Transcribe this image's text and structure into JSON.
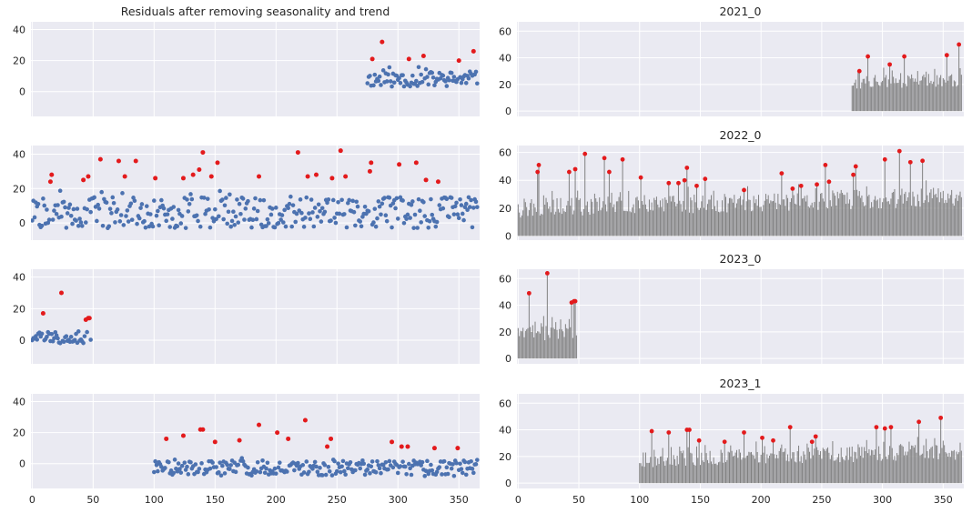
{
  "colors": {
    "background": "#eaeaf2",
    "grid": "#ffffff",
    "scatter": "#4c72b0",
    "outlier": "#e31a1c",
    "stem": "#808080"
  },
  "chart_data": [
    {
      "id": "res_2021",
      "type": "scatter",
      "title": "Residuals after removing seasonality and trend",
      "xlim": [
        -1,
        367
      ],
      "ylim": [
        -16,
        45
      ],
      "xticks": [
        0,
        50,
        100,
        150,
        200,
        250,
        300,
        350
      ],
      "yticks": [
        0,
        20,
        40
      ],
      "show_xticklabels": false,
      "x_start": 275,
      "x_end": 365,
      "base": 8,
      "amp": 5,
      "seed": 11,
      "outliers": [
        {
          "x": 279,
          "y": 21
        },
        {
          "x": 287,
          "y": 32
        },
        {
          "x": 309,
          "y": 21
        },
        {
          "x": 321,
          "y": 23
        },
        {
          "x": 350,
          "y": 20
        },
        {
          "x": 362,
          "y": 26
        }
      ]
    },
    {
      "id": "res_2022",
      "type": "scatter",
      "title": "",
      "xlim": [
        -1,
        367
      ],
      "ylim": [
        -10,
        45
      ],
      "xticks": [
        0,
        50,
        100,
        150,
        200,
        250,
        300,
        350
      ],
      "yticks": [
        0,
        20,
        40
      ],
      "show_xticklabels": false,
      "x_start": 0,
      "x_end": 365,
      "base": 6,
      "amp": 9,
      "seed": 22,
      "outliers": [
        {
          "x": 15,
          "y": 24
        },
        {
          "x": 16,
          "y": 28
        },
        {
          "x": 42,
          "y": 25
        },
        {
          "x": 46,
          "y": 27
        },
        {
          "x": 56,
          "y": 37
        },
        {
          "x": 71,
          "y": 36
        },
        {
          "x": 76,
          "y": 27
        },
        {
          "x": 85,
          "y": 36
        },
        {
          "x": 101,
          "y": 26
        },
        {
          "x": 124,
          "y": 26
        },
        {
          "x": 132,
          "y": 28
        },
        {
          "x": 137,
          "y": 31
        },
        {
          "x": 140,
          "y": 41
        },
        {
          "x": 147,
          "y": 27
        },
        {
          "x": 152,
          "y": 35
        },
        {
          "x": 186,
          "y": 27
        },
        {
          "x": 218,
          "y": 41
        },
        {
          "x": 226,
          "y": 27
        },
        {
          "x": 233,
          "y": 28
        },
        {
          "x": 246,
          "y": 26
        },
        {
          "x": 253,
          "y": 42
        },
        {
          "x": 257,
          "y": 27
        },
        {
          "x": 277,
          "y": 30
        },
        {
          "x": 278,
          "y": 35
        },
        {
          "x": 301,
          "y": 34
        },
        {
          "x": 315,
          "y": 35
        },
        {
          "x": 323,
          "y": 25
        },
        {
          "x": 333,
          "y": 24
        }
      ]
    },
    {
      "id": "res_2023",
      "type": "scatter",
      "title": "",
      "xlim": [
        -1,
        367
      ],
      "ylim": [
        -15,
        45
      ],
      "xticks": [
        0,
        50,
        100,
        150,
        200,
        250,
        300,
        350
      ],
      "yticks": [
        0,
        20,
        40
      ],
      "show_xticklabels": false,
      "x_start": 0,
      "x_end": 48,
      "base": 2,
      "amp": 4,
      "seed": 33,
      "outliers": [
        {
          "x": 9,
          "y": 17
        },
        {
          "x": 24,
          "y": 30
        },
        {
          "x": 44,
          "y": 13
        },
        {
          "x": 46,
          "y": 14
        },
        {
          "x": 47,
          "y": 14
        }
      ]
    },
    {
      "id": "res_2023_1",
      "type": "scatter",
      "title": "",
      "xlim": [
        -1,
        367
      ],
      "ylim": [
        -16,
        45
      ],
      "xticks": [
        0,
        50,
        100,
        150,
        200,
        250,
        300,
        350
      ],
      "yticks": [
        0,
        20,
        40
      ],
      "show_xticklabels": true,
      "x_start": 100,
      "x_end": 365,
      "base": -3,
      "amp": 5,
      "seed": 44,
      "outliers": [
        {
          "x": 110,
          "y": 16
        },
        {
          "x": 124,
          "y": 18
        },
        {
          "x": 138,
          "y": 22
        },
        {
          "x": 140,
          "y": 22
        },
        {
          "x": 150,
          "y": 14
        },
        {
          "x": 170,
          "y": 15
        },
        {
          "x": 186,
          "y": 25
        },
        {
          "x": 201,
          "y": 20
        },
        {
          "x": 210,
          "y": 16
        },
        {
          "x": 224,
          "y": 28
        },
        {
          "x": 242,
          "y": 11
        },
        {
          "x": 245,
          "y": 16
        },
        {
          "x": 295,
          "y": 14
        },
        {
          "x": 303,
          "y": 11
        },
        {
          "x": 308,
          "y": 11
        },
        {
          "x": 330,
          "y": 10
        },
        {
          "x": 349,
          "y": 10
        }
      ]
    },
    {
      "id": "raw_2021",
      "type": "stem",
      "title": "2021_0",
      "xlim": [
        -1,
        367
      ],
      "ylim": [
        -4,
        67
      ],
      "xticks": [
        0,
        50,
        100,
        150,
        200,
        250,
        300,
        350
      ],
      "yticks": [
        0,
        20,
        40,
        60
      ],
      "show_xticklabels": false,
      "x_start": 275,
      "x_end": 365,
      "base": 20,
      "amp": 10,
      "seed": 55,
      "outliers": [
        {
          "x": 281,
          "y": 30
        },
        {
          "x": 288,
          "y": 41
        },
        {
          "x": 306,
          "y": 35
        },
        {
          "x": 318,
          "y": 41
        },
        {
          "x": 353,
          "y": 42
        },
        {
          "x": 363,
          "y": 50
        }
      ]
    },
    {
      "id": "raw_2022",
      "type": "stem",
      "title": "2022_0",
      "xlim": [
        -1,
        367
      ],
      "ylim": [
        -3,
        65
      ],
      "xticks": [
        0,
        50,
        100,
        150,
        200,
        250,
        300,
        350
      ],
      "yticks": [
        0,
        20,
        40,
        60
      ],
      "show_xticklabels": false,
      "x_start": 0,
      "x_end": 365,
      "base": 18,
      "amp": 14,
      "seed": 66,
      "outliers": [
        {
          "x": 16,
          "y": 46
        },
        {
          "x": 17,
          "y": 51
        },
        {
          "x": 42,
          "y": 46
        },
        {
          "x": 47,
          "y": 48
        },
        {
          "x": 55,
          "y": 59
        },
        {
          "x": 71,
          "y": 56
        },
        {
          "x": 75,
          "y": 46
        },
        {
          "x": 86,
          "y": 55
        },
        {
          "x": 101,
          "y": 42
        },
        {
          "x": 124,
          "y": 38
        },
        {
          "x": 132,
          "y": 38
        },
        {
          "x": 137,
          "y": 40
        },
        {
          "x": 139,
          "y": 49
        },
        {
          "x": 147,
          "y": 36
        },
        {
          "x": 154,
          "y": 41
        },
        {
          "x": 186,
          "y": 33
        },
        {
          "x": 217,
          "y": 45
        },
        {
          "x": 226,
          "y": 34
        },
        {
          "x": 233,
          "y": 36
        },
        {
          "x": 246,
          "y": 37
        },
        {
          "x": 253,
          "y": 51
        },
        {
          "x": 256,
          "y": 39
        },
        {
          "x": 276,
          "y": 44
        },
        {
          "x": 278,
          "y": 50
        },
        {
          "x": 302,
          "y": 55
        },
        {
          "x": 314,
          "y": 61
        },
        {
          "x": 323,
          "y": 53
        },
        {
          "x": 333,
          "y": 54
        }
      ]
    },
    {
      "id": "raw_2023",
      "type": "stem",
      "title": "2023_0",
      "xlim": [
        -1,
        367
      ],
      "ylim": [
        -4,
        67
      ],
      "xticks": [
        0,
        50,
        100,
        150,
        200,
        250,
        300,
        350
      ],
      "yticks": [
        0,
        20,
        40,
        60
      ],
      "show_xticklabels": false,
      "x_start": 0,
      "x_end": 48,
      "base": 18,
      "amp": 14,
      "seed": 77,
      "outliers": [
        {
          "x": 9,
          "y": 49
        },
        {
          "x": 24,
          "y": 64
        },
        {
          "x": 44,
          "y": 42
        },
        {
          "x": 46,
          "y": 43
        },
        {
          "x": 47,
          "y": 43
        }
      ]
    },
    {
      "id": "raw_2023_1",
      "type": "stem",
      "title": "2023_1",
      "xlim": [
        -1,
        367
      ],
      "ylim": [
        -4,
        67
      ],
      "xticks": [
        0,
        50,
        100,
        150,
        200,
        250,
        300,
        350
      ],
      "yticks": [
        0,
        20,
        40,
        60
      ],
      "show_xticklabels": true,
      "x_start": 100,
      "x_end": 365,
      "base": 16,
      "amp": 12,
      "seed": 88,
      "outliers": [
        {
          "x": 110,
          "y": 39
        },
        {
          "x": 124,
          "y": 38
        },
        {
          "x": 139,
          "y": 40
        },
        {
          "x": 141,
          "y": 40
        },
        {
          "x": 149,
          "y": 32
        },
        {
          "x": 170,
          "y": 31
        },
        {
          "x": 186,
          "y": 38
        },
        {
          "x": 201,
          "y": 34
        },
        {
          "x": 210,
          "y": 32
        },
        {
          "x": 224,
          "y": 42
        },
        {
          "x": 242,
          "y": 31
        },
        {
          "x": 245,
          "y": 35
        },
        {
          "x": 295,
          "y": 42
        },
        {
          "x": 302,
          "y": 41
        },
        {
          "x": 307,
          "y": 42
        },
        {
          "x": 330,
          "y": 46
        },
        {
          "x": 348,
          "y": 49
        }
      ]
    }
  ]
}
